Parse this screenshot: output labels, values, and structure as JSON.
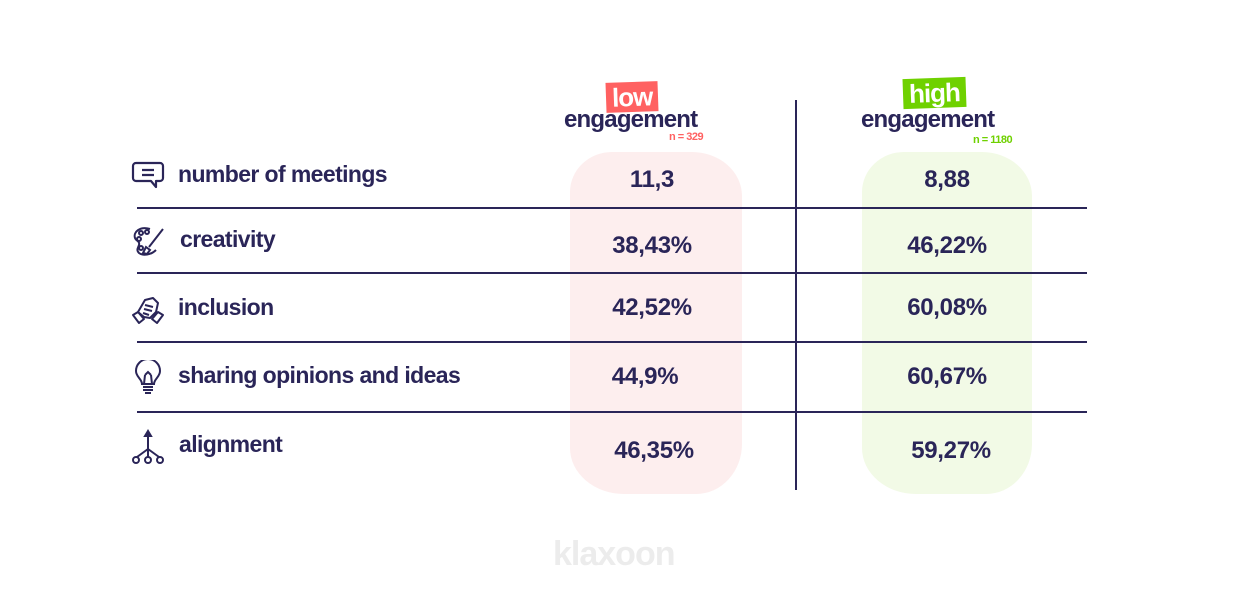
{
  "chart_data": {
    "type": "table",
    "columns": [
      {
        "tag": "low",
        "label": "engagement",
        "n": "n = 329",
        "color": "#ff6161",
        "bg": "#fdeeee"
      },
      {
        "tag": "high",
        "label": "engagement",
        "n": "n = 1180",
        "color": "#6fd100",
        "bg": "#f2fae6"
      }
    ],
    "rows": [
      {
        "icon": "speech-bubble-icon",
        "label": "number of meetings",
        "low": "11,3",
        "high": "8,88"
      },
      {
        "icon": "palette-icon",
        "label": "creativity",
        "low": "38,43%",
        "high": "46,22%"
      },
      {
        "icon": "handshake-icon",
        "label": "inclusion",
        "low": "42,52%",
        "high": "60,08%"
      },
      {
        "icon": "lightbulb-icon",
        "label": "sharing opinions and ideas",
        "low": "44,9%",
        "high": "60,67%"
      },
      {
        "icon": "hierarchy-icon",
        "label": "alignment",
        "low": "46,35%",
        "high": "59,27%"
      }
    ]
  },
  "brand": "klaxoon"
}
